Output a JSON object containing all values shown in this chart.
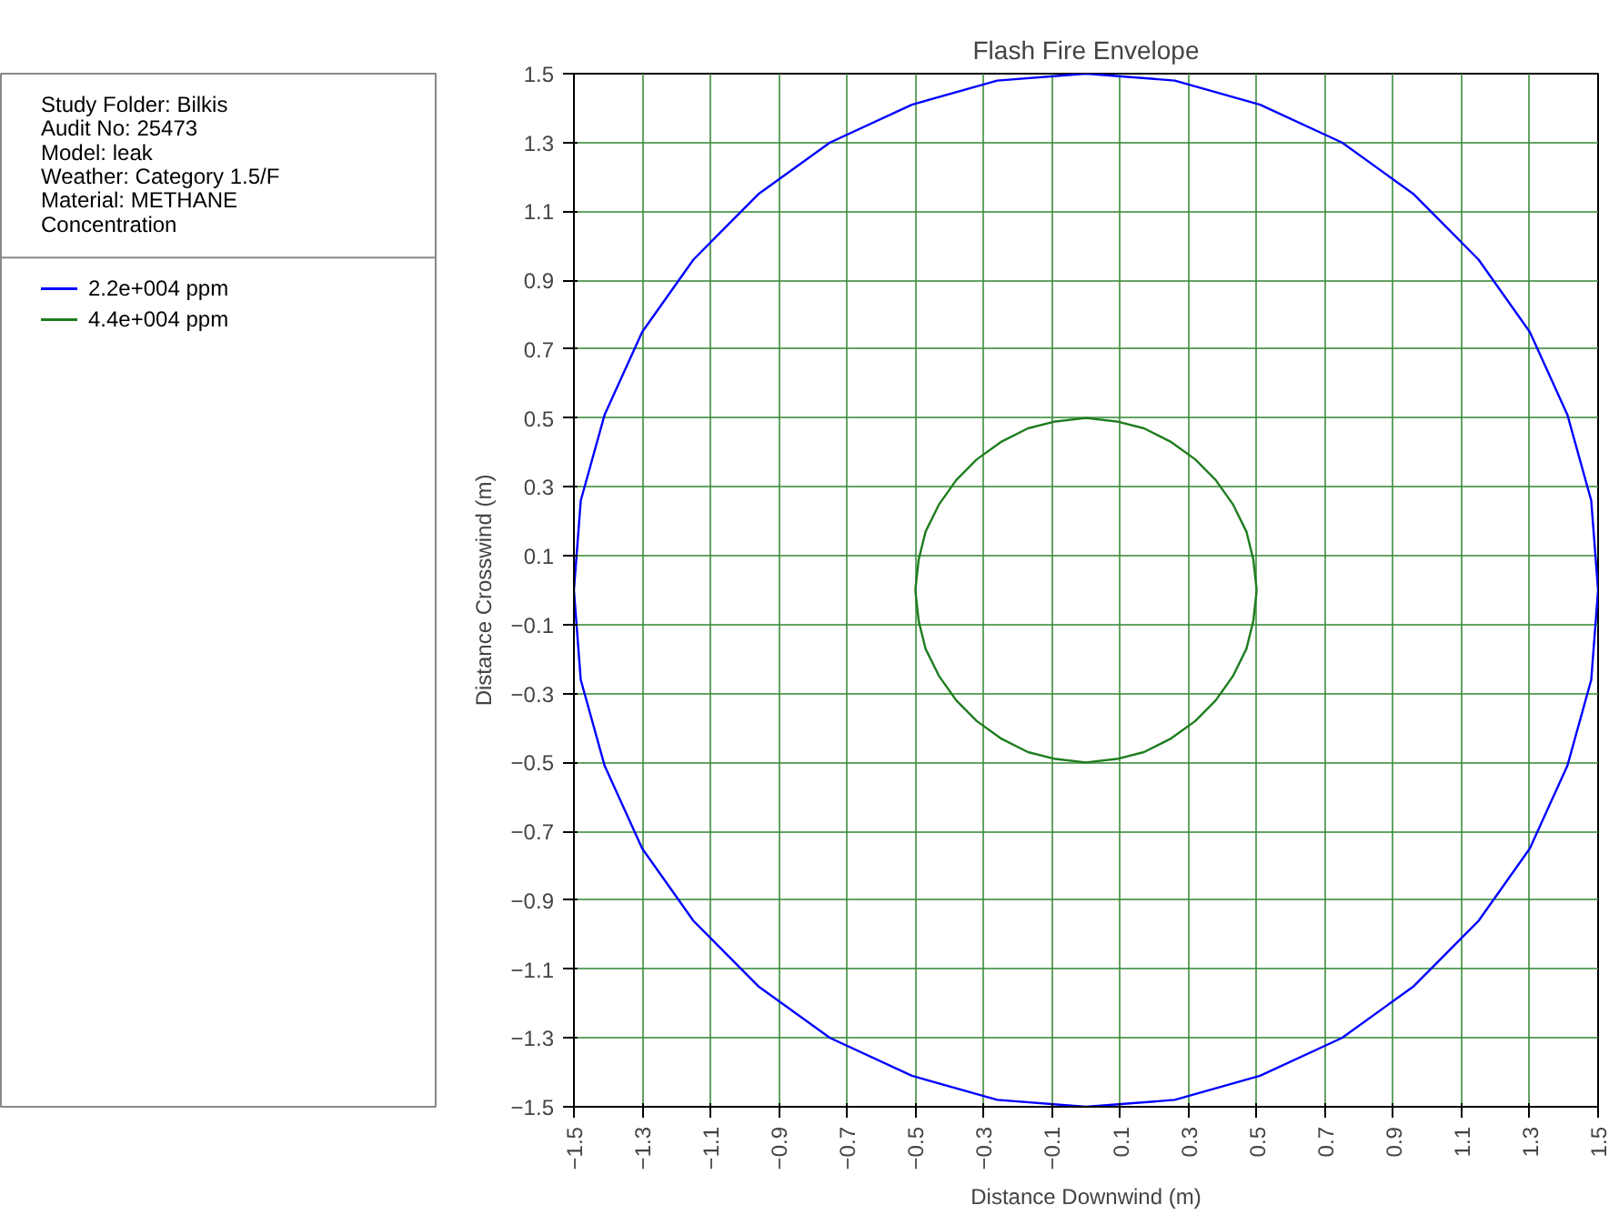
{
  "chart_data": {
    "type": "line",
    "title": "Flash Fire Envelope",
    "xlabel": "Distance Downwind (m)",
    "ylabel": "Distance Crosswind (m)",
    "annotations": [
      "Study Folder: Bilkis",
      "Audit No: 25473",
      "Model: leak",
      "Weather: Category 1.5/F",
      "Material: METHANE"
    ],
    "legend_title": "Concentration",
    "legend": "left",
    "grid": true,
    "marker": "none",
    "line_style": "solid",
    "xlim": [
      -1.5,
      1.5
    ],
    "ylim": [
      -1.5,
      1.5
    ],
    "xticks": [
      -1.5,
      -1.3,
      -1.1,
      -0.9,
      -0.7,
      -0.5,
      -0.3,
      -0.1,
      0.1,
      0.3,
      0.5,
      0.7,
      0.9,
      1.1,
      1.3,
      1.5
    ],
    "yticks": [
      -1.5,
      -1.3,
      -1.1,
      -0.9,
      -0.7,
      -0.5,
      -0.3,
      -0.1,
      0.1,
      0.3,
      0.5,
      0.7,
      0.9,
      1.1,
      1.3,
      1.5
    ],
    "series": [
      {
        "name": "2.2e+004 ppm",
        "color": "#0000ff",
        "x": [
          -1.5,
          -1.48,
          -1.41,
          -1.3,
          -1.15,
          -0.96,
          -0.75,
          -0.51,
          -0.26,
          0,
          0.26,
          0.51,
          0.75,
          0.96,
          1.15,
          1.3,
          1.41,
          1.48,
          1.5,
          null,
          -1.5,
          -1.48,
          -1.41,
          -1.3,
          -1.15,
          -0.96,
          -0.75,
          -0.51,
          -0.26,
          0,
          0.26,
          0.51,
          0.75,
          0.96,
          1.15,
          1.3,
          1.41,
          1.48,
          1.5
        ],
        "values": [
          0,
          0.26,
          0.51,
          0.75,
          0.96,
          1.15,
          1.3,
          1.41,
          1.48,
          1.5,
          1.48,
          1.41,
          1.3,
          1.15,
          0.96,
          0.75,
          0.51,
          0.26,
          0,
          null,
          0,
          -0.26,
          -0.51,
          -0.75,
          -0.96,
          -1.15,
          -1.3,
          -1.41,
          -1.48,
          -1.5,
          -1.48,
          -1.41,
          -1.3,
          -1.15,
          -0.96,
          -0.75,
          -0.51,
          -0.26,
          0
        ]
      },
      {
        "name": "4.4e+004 ppm",
        "color": "#1e7d1e",
        "x": [
          -0.5,
          -0.49,
          -0.47,
          -0.43,
          -0.38,
          -0.32,
          -0.25,
          -0.17,
          -0.09,
          0,
          0.09,
          0.17,
          0.25,
          0.32,
          0.38,
          0.43,
          0.47,
          0.49,
          0.5,
          null,
          -0.5,
          -0.49,
          -0.47,
          -0.43,
          -0.38,
          -0.32,
          -0.25,
          -0.17,
          -0.09,
          0,
          0.09,
          0.17,
          0.25,
          0.32,
          0.38,
          0.43,
          0.47,
          0.49,
          0.5
        ],
        "values": [
          0,
          0.09,
          0.17,
          0.25,
          0.32,
          0.38,
          0.43,
          0.47,
          0.49,
          0.5,
          0.49,
          0.47,
          0.43,
          0.38,
          0.32,
          0.25,
          0.17,
          0.09,
          0,
          null,
          0,
          -0.09,
          -0.17,
          -0.25,
          -0.32,
          -0.38,
          -0.43,
          -0.47,
          -0.49,
          -0.5,
          -0.49,
          -0.47,
          -0.43,
          -0.38,
          -0.32,
          -0.25,
          -0.17,
          -0.09,
          0
        ]
      }
    ]
  }
}
